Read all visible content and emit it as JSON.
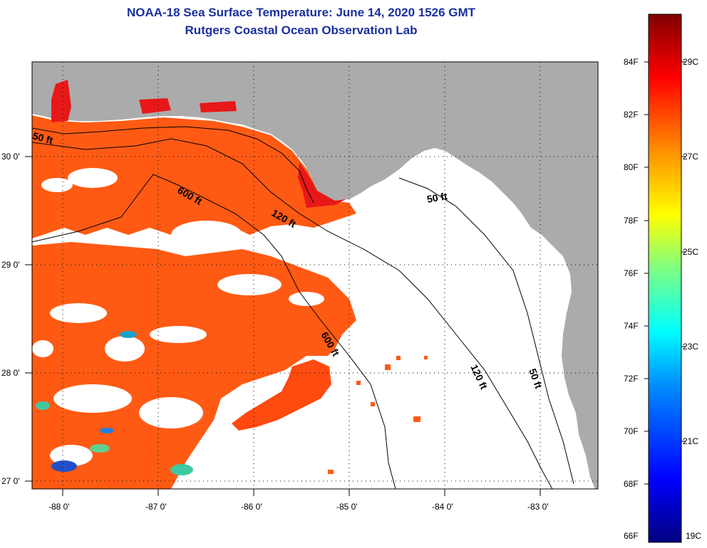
{
  "title": {
    "line1": "NOAA-18 Sea Surface Temperature:  June 14, 2020 1526 GMT",
    "line2": "Rutgers Coastal Ocean Observation Lab"
  },
  "map": {
    "lon_labels": [
      "-88 0'",
      "-87 0'",
      "-86 0'",
      "-85 0'",
      "-84 0'",
      "-83 0'"
    ],
    "lat_labels": [
      "30 0'",
      "29 0'",
      "28 0'",
      "27 0'"
    ],
    "contour_labels": [
      "50 ft",
      "600 ft",
      "120 ft",
      "50 ft",
      "600 ft",
      "120 ft",
      "50 ft"
    ]
  },
  "colorbar": {
    "fahrenheit": [
      "84F",
      "82F",
      "80F",
      "78F",
      "76F",
      "74F",
      "72F",
      "70F",
      "68F",
      "66F"
    ],
    "celsius": [
      "29C",
      "27C",
      "25C",
      "23C",
      "21C",
      "19C"
    ],
    "colors": [
      "#00007f",
      "#0000ff",
      "#0080ff",
      "#00ffff",
      "#80ff80",
      "#ffff00",
      "#ff8000",
      "#ff0000",
      "#7f0000"
    ]
  }
}
